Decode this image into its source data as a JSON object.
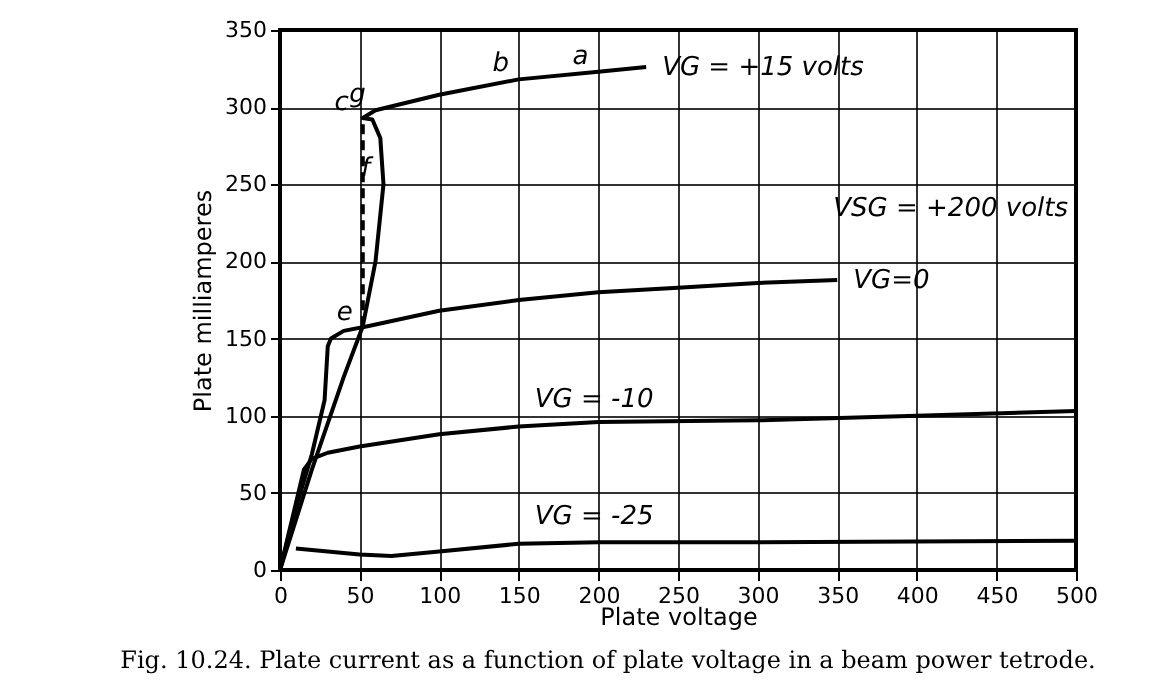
{
  "chart_data": {
    "type": "line",
    "xlabel": "Plate voltage",
    "ylabel": "Plate milliamperes",
    "xlim": [
      0,
      500
    ],
    "ylim": [
      0,
      350
    ],
    "xticks": [
      0,
      50,
      100,
      150,
      200,
      250,
      300,
      350,
      400,
      450,
      500
    ],
    "yticks": [
      0,
      50,
      100,
      150,
      200,
      250,
      300,
      350
    ],
    "grid": true,
    "line_style": "solid",
    "marker": "none",
    "series": [
      {
        "name": "VG = +15 volts",
        "color": "#000000",
        "x": [
          0,
          20,
          40,
          52,
          60,
          65,
          63,
          58,
          52,
          60,
          100,
          150,
          200,
          230
        ],
        "values": [
          0,
          65,
          125,
          158,
          200,
          250,
          280,
          292,
          293,
          298,
          308,
          318,
          323,
          326
        ]
      },
      {
        "name": "VG=0",
        "color": "#000000",
        "x": [
          0,
          10,
          20,
          28,
          30,
          32,
          40,
          55,
          100,
          150,
          200,
          250,
          300,
          350
        ],
        "values": [
          0,
          40,
          75,
          110,
          145,
          150,
          155,
          158,
          168,
          175,
          180,
          183,
          186,
          188
        ]
      },
      {
        "name": "VG = -10",
        "color": "#000000",
        "x": [
          0,
          15,
          20,
          30,
          50,
          100,
          150,
          200,
          300,
          400,
          500
        ],
        "values": [
          0,
          65,
          72,
          76,
          80,
          88,
          93,
          96,
          97,
          100,
          103
        ]
      },
      {
        "name": "VG = -25",
        "color": "#000000",
        "x": [
          10,
          30,
          50,
          70,
          100,
          150,
          200,
          300,
          500
        ],
        "values": [
          14,
          12,
          10,
          9,
          12,
          17,
          18,
          18,
          19
        ]
      },
      {
        "color": "#000000",
        "line_style": "dashed",
        "x": [
          52,
          52
        ],
        "values": [
          158,
          293
        ]
      }
    ],
    "annotations": [
      {
        "text": "a",
        "x": 200,
        "y": 323
      },
      {
        "text": "b",
        "x": 150,
        "y": 318
      },
      {
        "text": "c",
        "x": 50,
        "y": 293
      },
      {
        "text": "g",
        "x": 60,
        "y": 298
      },
      {
        "text": "f",
        "x": 65,
        "y": 250
      },
      {
        "text": "e",
        "x": 52,
        "y": 157
      },
      "VSG = +200 volts",
      "Fig. 10.24. Plate current as a function of plate voltage in a beam power tetrode."
    ]
  }
}
